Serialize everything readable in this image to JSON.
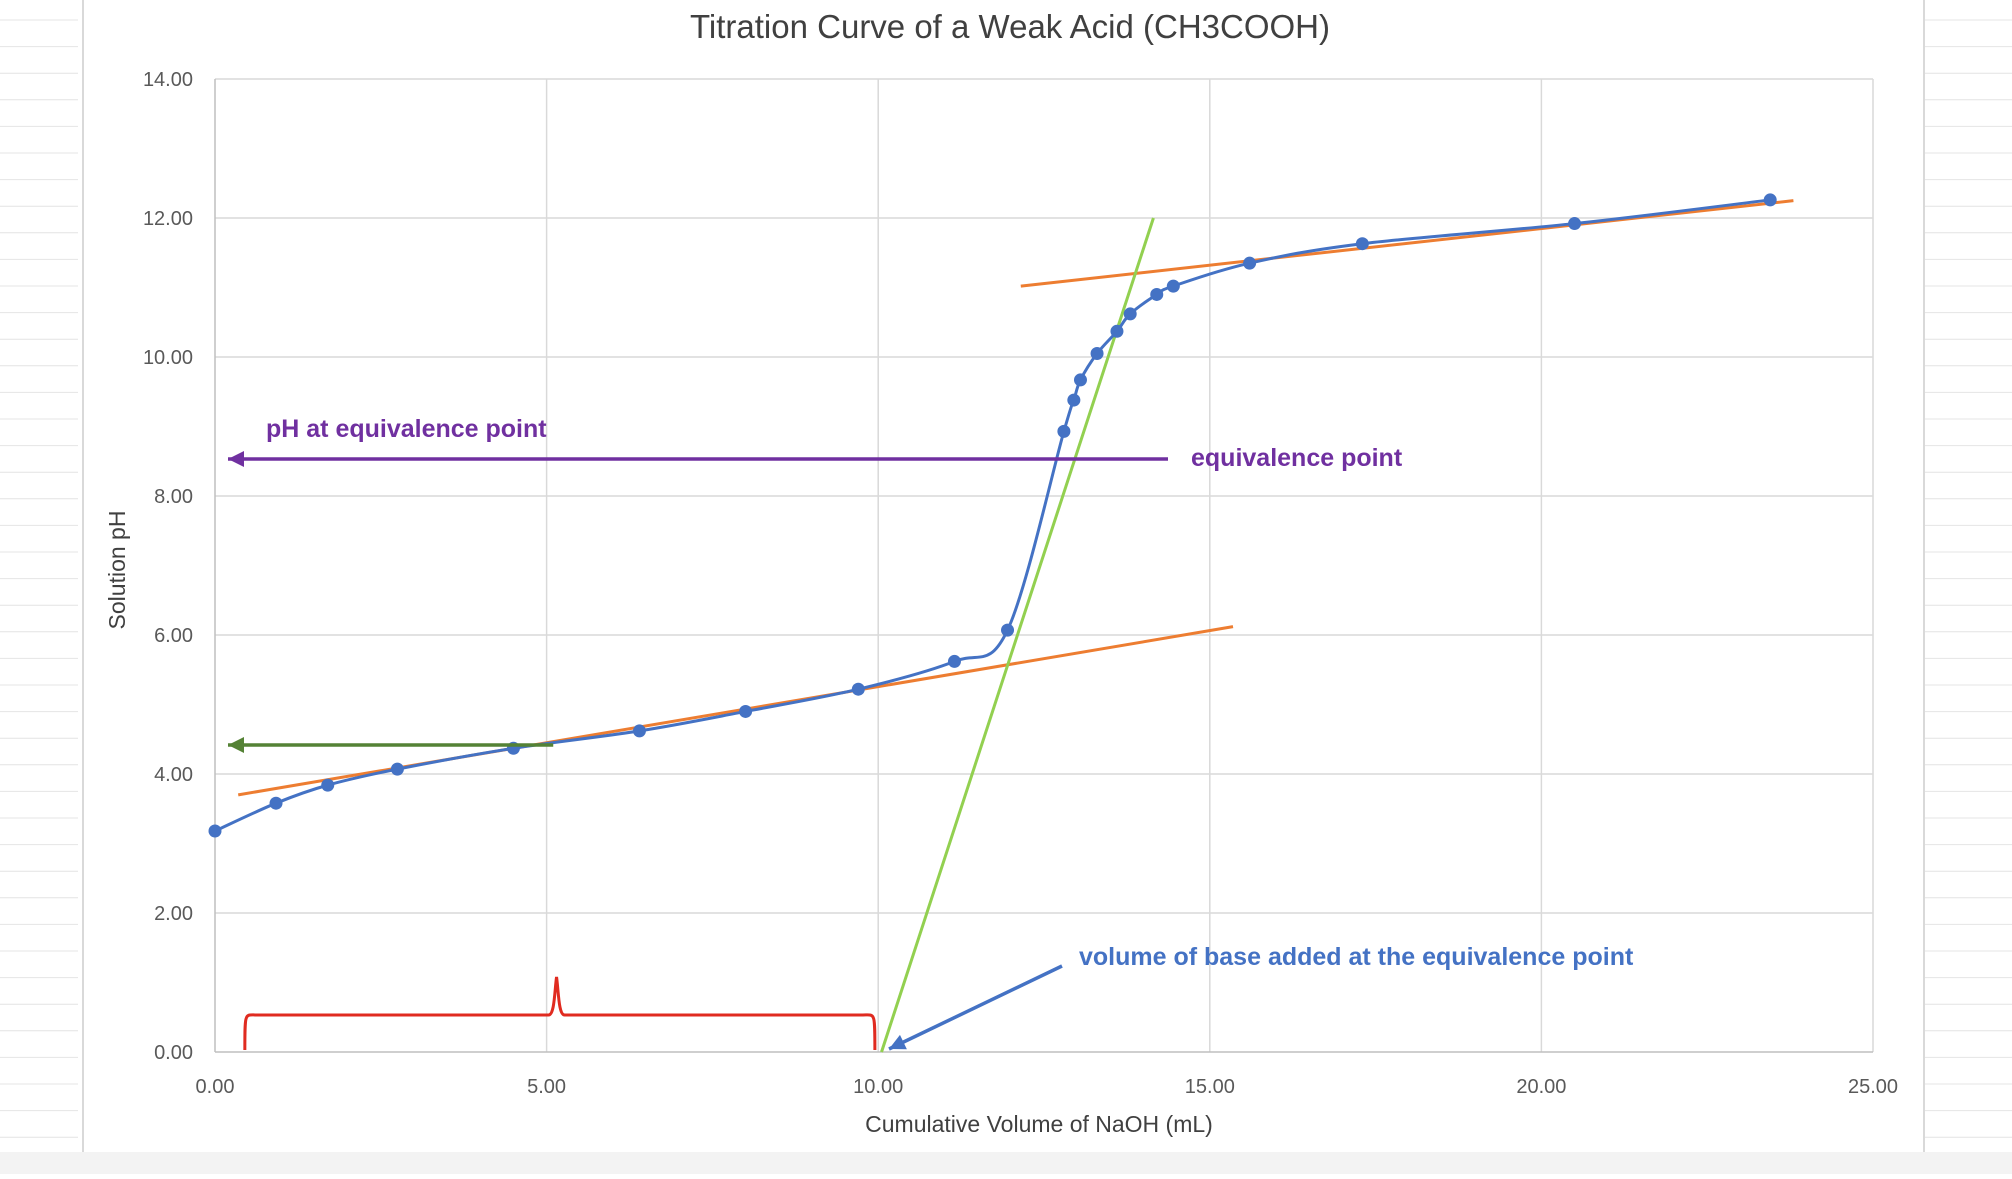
{
  "chart_data": {
    "type": "scatter",
    "title": "Titration Curve of a Weak Acid (CH3COOH)",
    "xlabel": "Cumulative Volume of NaOH (mL)",
    "ylabel": "Solution pH",
    "xlim": [
      0,
      25
    ],
    "ylim": [
      0,
      14
    ],
    "x_ticks": [
      "0.00",
      "5.00",
      "10.00",
      "15.00",
      "20.00",
      "25.00"
    ],
    "y_ticks": [
      "0.00",
      "2.00",
      "4.00",
      "6.00",
      "8.00",
      "10.00",
      "12.00",
      "14.00"
    ],
    "grid": true,
    "legend": "none",
    "series": [
      {
        "color": "#4472c4",
        "x": [
          0.0,
          0.92,
          1.7,
          2.75,
          4.5,
          6.4,
          8.0,
          9.7,
          11.15,
          11.95,
          12.8,
          12.95,
          13.05,
          13.3,
          13.6,
          13.8,
          14.2,
          14.45,
          15.6,
          17.3,
          20.5,
          23.45
        ],
        "y": [
          3.18,
          3.58,
          3.84,
          4.07,
          4.37,
          4.62,
          4.9,
          5.22,
          5.62,
          6.07,
          8.93,
          9.38,
          9.67,
          10.05,
          10.37,
          10.62,
          10.9,
          11.02,
          11.35,
          11.63,
          11.92,
          12.26
        ]
      }
    ],
    "tangent_lines": [
      {
        "color": "#ed7d31",
        "x": [
          0.35,
          15.35
        ],
        "y": [
          3.7,
          6.12
        ]
      },
      {
        "color": "#ed7d31",
        "x": [
          12.15,
          23.8
        ],
        "y": [
          11.02,
          12.25
        ]
      },
      {
        "color": "#92d050",
        "x": [
          10.05,
          14.15
        ],
        "y": [
          0.0,
          12.0
        ]
      }
    ],
    "annotations": [
      {
        "text": "pH at equivalence point",
        "color": "#7030a0"
      },
      {
        "text": "equivalence point",
        "color": "#7030a0"
      },
      {
        "text": "volume of base added at the equivalence point",
        "color": "#4472c4"
      }
    ],
    "arrow_colors": {
      "equivalence": "#7030a0",
      "half_equivalence": "#548235",
      "volume": "#4472c4",
      "brace": "#e02b20"
    }
  }
}
